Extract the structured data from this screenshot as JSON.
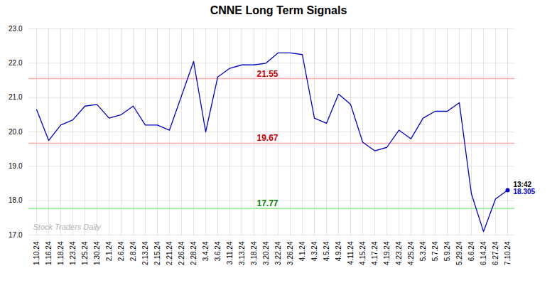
{
  "chart_data": {
    "type": "line",
    "title": "CNNE Long Term Signals",
    "categories": [
      "1.10.24",
      "1.16.24",
      "1.18.24",
      "1.23.24",
      "1.25.24",
      "1.30.24",
      "2.1.24",
      "2.6.24",
      "2.8.24",
      "2.13.24",
      "2.15.24",
      "2.21.24",
      "2.26.24",
      "2.28.24",
      "3.4.24",
      "3.6.24",
      "3.11.24",
      "3.13.24",
      "3.18.24",
      "3.20.24",
      "3.22.24",
      "3.26.24",
      "4.1.24",
      "4.3.24",
      "4.5.24",
      "4.9.24",
      "4.11.24",
      "4.15.24",
      "4.17.24",
      "4.19.24",
      "4.23.24",
      "4.25.24",
      "5.3.24",
      "5.7.24",
      "5.9.24",
      "5.29.24",
      "6.6.24",
      "6.14.24",
      "6.27.24",
      "7.10.24"
    ],
    "values": [
      20.65,
      19.75,
      20.2,
      20.35,
      20.75,
      20.8,
      20.4,
      20.5,
      20.75,
      20.2,
      20.2,
      20.05,
      21.05,
      22.05,
      20.0,
      21.6,
      21.85,
      21.95,
      21.95,
      22.0,
      22.3,
      22.3,
      22.25,
      20.4,
      20.25,
      21.1,
      20.8,
      19.7,
      19.45,
      19.55,
      20.05,
      19.8,
      20.4,
      20.6,
      20.6,
      20.85,
      18.2,
      17.1,
      18.05,
      18.305
    ],
    "color": "#0000cc",
    "ylim": [
      17,
      23
    ],
    "yticks": [
      17,
      18,
      19,
      20,
      21,
      22,
      23
    ],
    "grid": true,
    "hlines": [
      {
        "value": 21.55,
        "label": "21.55",
        "color": "#ffaaaa",
        "label_color": "#cc0000"
      },
      {
        "value": 19.67,
        "label": "19.67",
        "color": "#ffaaaa",
        "label_color": "#cc0000"
      },
      {
        "value": 17.77,
        "label": "17.77",
        "color": "#90ee90",
        "label_color": "#008000"
      }
    ],
    "annotations": [
      {
        "text": "13:42",
        "color": "#000000"
      },
      {
        "text": "18.305",
        "color": "#0000cc"
      }
    ],
    "watermark": "Stock Traders Daily"
  }
}
